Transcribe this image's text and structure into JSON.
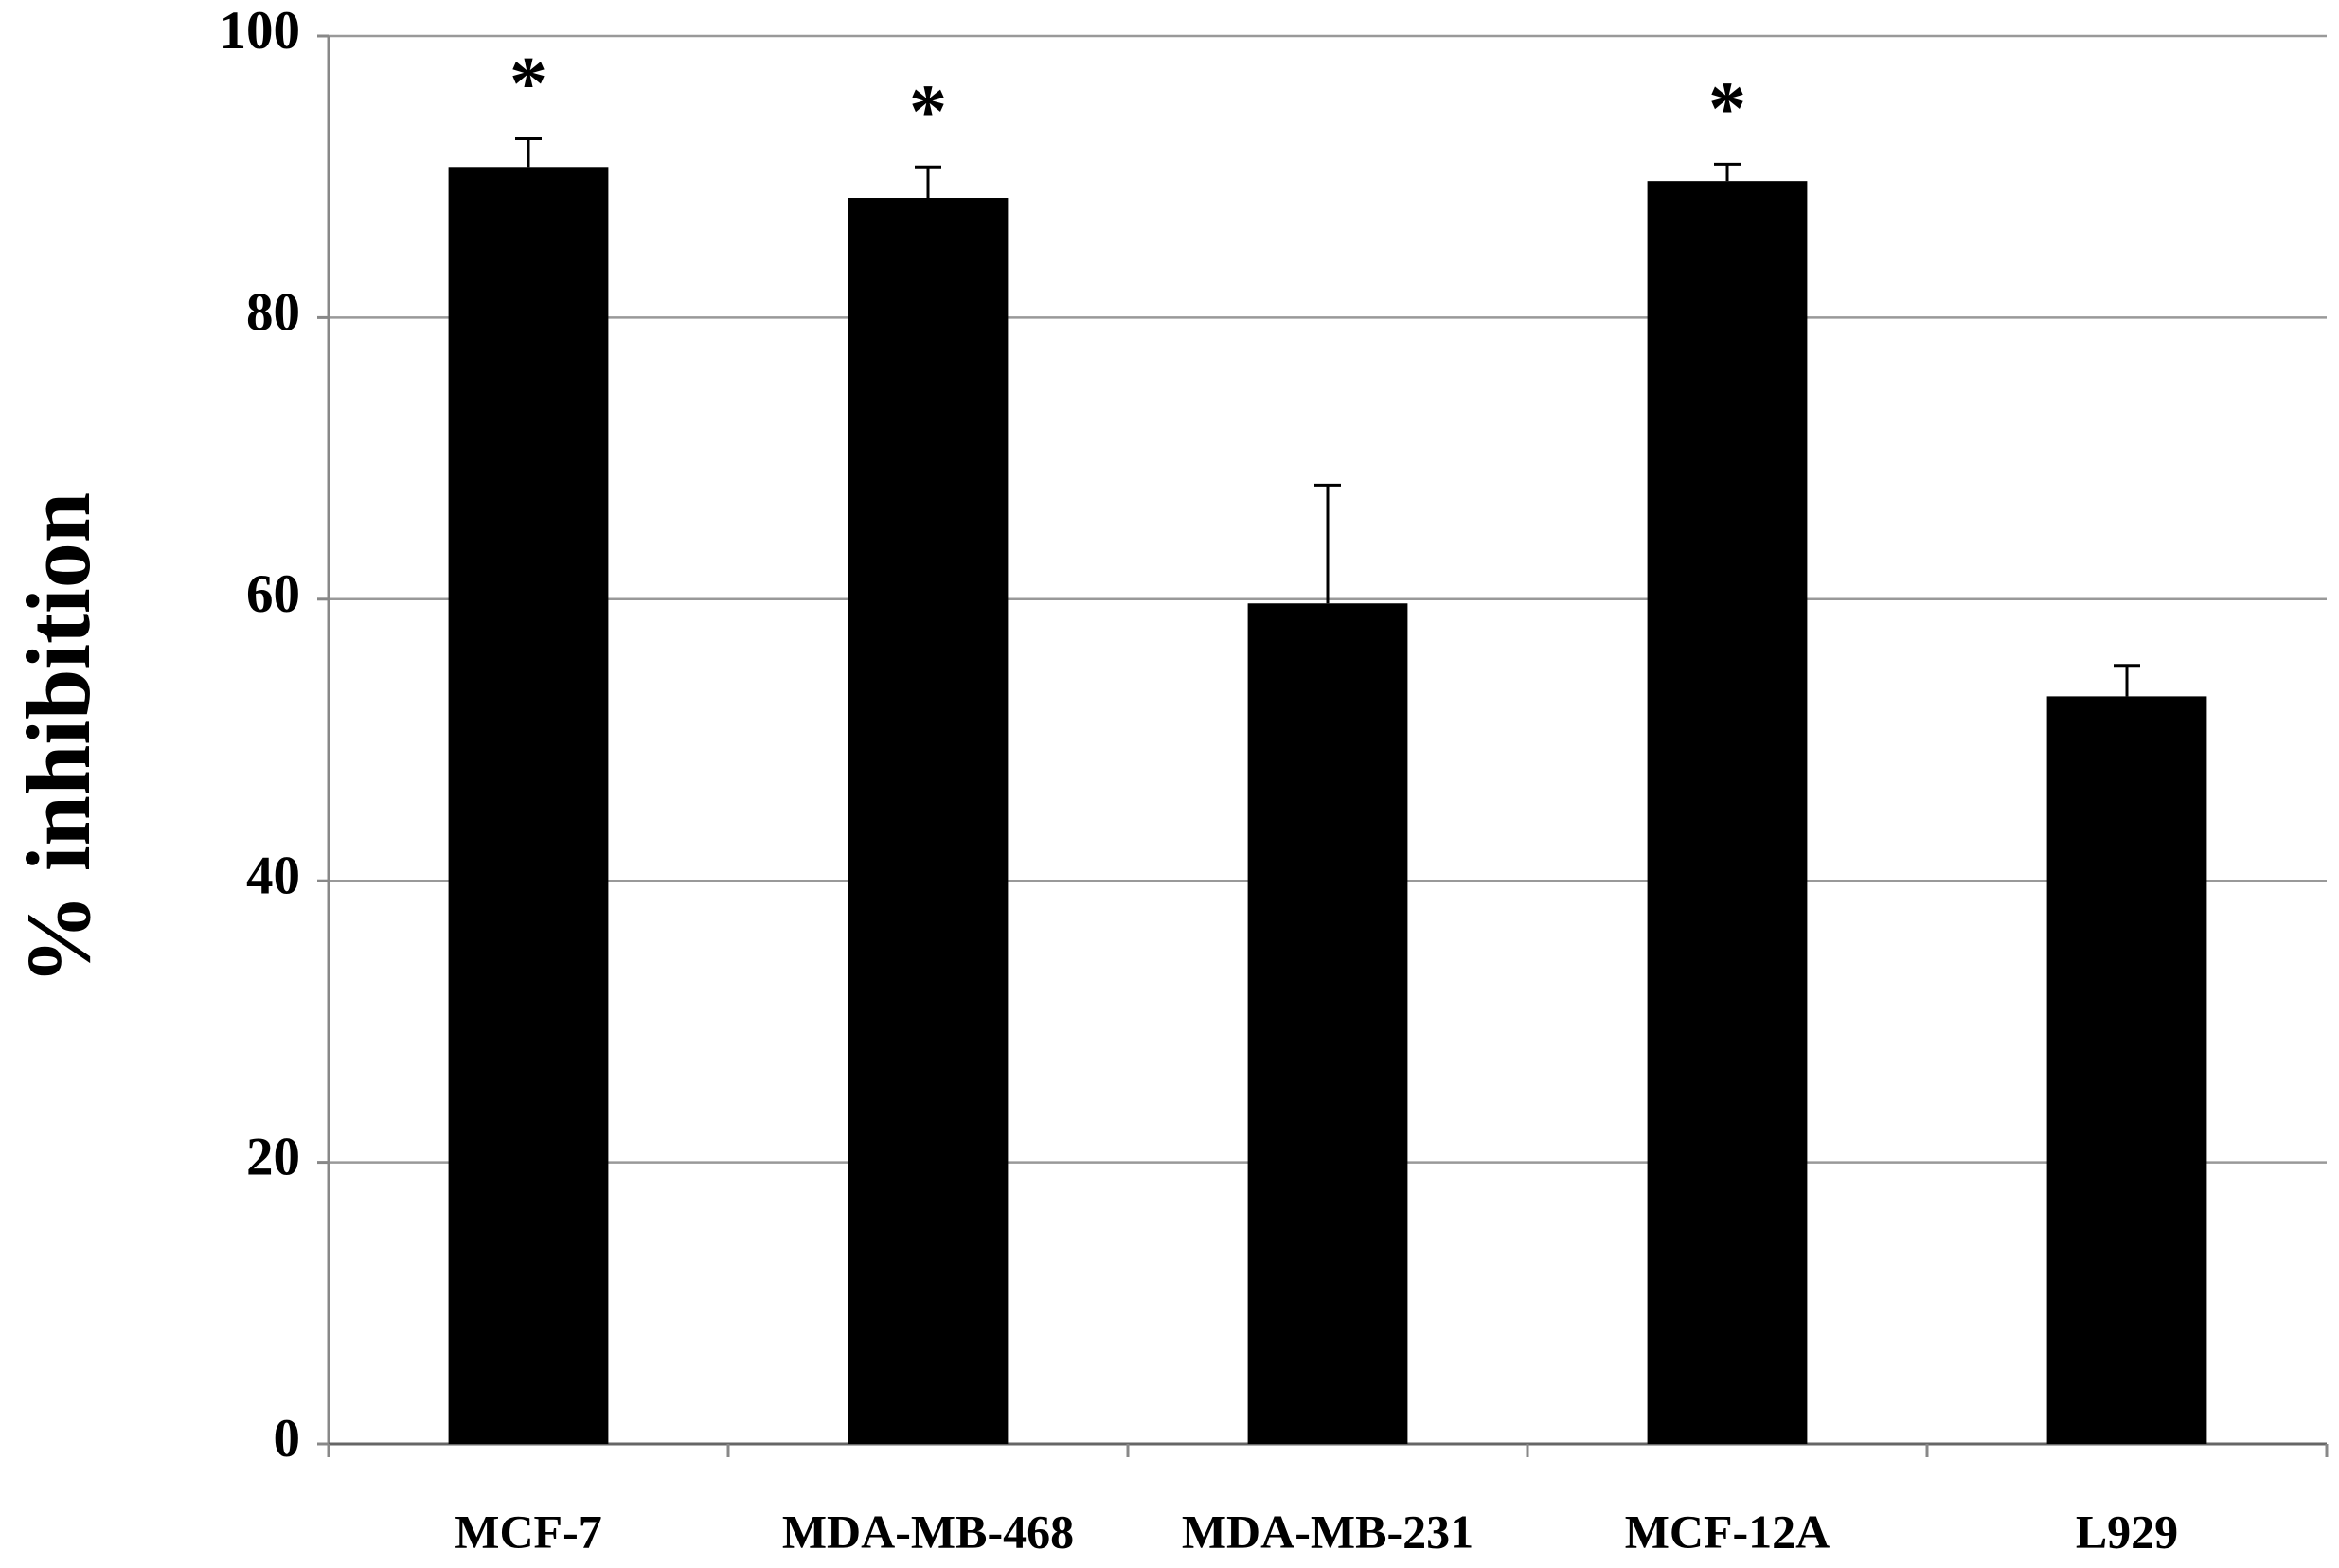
{
  "chart_data": {
    "type": "bar",
    "y_label": "% inhibition",
    "categories": [
      "MCF-7",
      "MDA-MB-468",
      "MDA-MB-231",
      "MCF-12A",
      "L929"
    ],
    "values": [
      90.7,
      88.5,
      59.7,
      89.7,
      53.1
    ],
    "errors": [
      2.0,
      2.2,
      8.4,
      1.2,
      2.2
    ],
    "markers": [
      "*",
      "*",
      null,
      "*",
      null
    ],
    "color": "#000000",
    "ylim": [
      0,
      100
    ],
    "yticks": [
      0,
      20,
      40,
      60,
      80,
      100
    ],
    "grid": true
  }
}
